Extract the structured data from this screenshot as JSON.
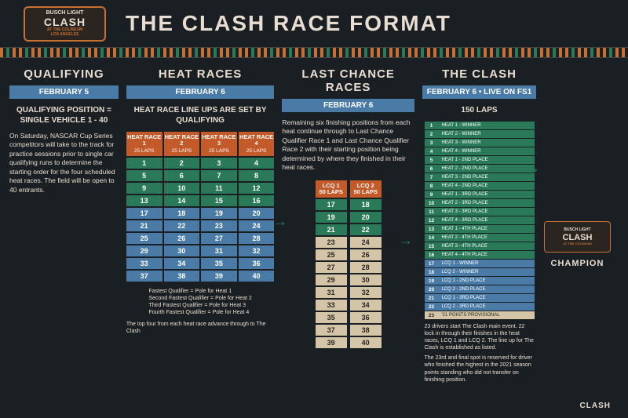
{
  "colors": {
    "bg": "#1a1f24",
    "cream": "#e8ddd0",
    "orange": "#c25a2a",
    "green": "#2a7a5a",
    "blue": "#4a7ba6",
    "tan": "#d4c5a8"
  },
  "logo": {
    "line1": "BUSCH LIGHT",
    "line2": "CLASH",
    "line3": "AT THE COLISEUM",
    "line4": "LOS ANGELES"
  },
  "title": "THE CLASH RACE FORMAT",
  "qualifying": {
    "title": "QUALIFYING",
    "date": "FEBRUARY 5",
    "subhead": "QUALIFYING POSITION = SINGLE VEHICLE 1 - 40",
    "body": "On Saturday, NASCAR Cup Series competitors will take to the track for practice sessions prior to single car qualifying runs to determine the starting order for the four scheduled heat races. The field will be open to 40 entrants."
  },
  "heats": {
    "title": "HEAT RACES",
    "date": "FEBRUARY 6",
    "subhead": "HEAT RACE LINE UPS ARE SET BY QUALIFYING",
    "headers": [
      {
        "name": "HEAT RACE 1",
        "laps": "25 LAPS"
      },
      {
        "name": "HEAT RACE 2",
        "laps": "25 LAPS"
      },
      {
        "name": "HEAT RACE 3",
        "laps": "25 LAPS"
      },
      {
        "name": "HEAT RACE 4",
        "laps": "25 LAPS"
      }
    ],
    "rows": [
      {
        "cells": [
          1,
          2,
          3,
          4
        ],
        "color": "green"
      },
      {
        "cells": [
          5,
          6,
          7,
          8
        ],
        "color": "green"
      },
      {
        "cells": [
          9,
          10,
          11,
          12
        ],
        "color": "green"
      },
      {
        "cells": [
          13,
          14,
          15,
          16
        ],
        "color": "green"
      },
      {
        "cells": [
          17,
          18,
          19,
          20
        ],
        "color": "blue"
      },
      {
        "cells": [
          21,
          22,
          23,
          24
        ],
        "color": "blue"
      },
      {
        "cells": [
          25,
          26,
          27,
          28
        ],
        "color": "blue"
      },
      {
        "cells": [
          29,
          30,
          31,
          32
        ],
        "color": "blue"
      },
      {
        "cells": [
          33,
          34,
          35,
          36
        ],
        "color": "blue"
      },
      {
        "cells": [
          37,
          38,
          39,
          40
        ],
        "color": "blue"
      }
    ],
    "note1": "Fastest Qualifier = Pole for Heat 1\nSecond Fastest Qualifier = Pole for Heat 2\nThird Fastest Qualifier = Pole for Heat 3\nFourth Fastest Qualifier = Pole for Heat 4",
    "note2": "The top four from each heat race advance through to The Clash"
  },
  "lcq": {
    "title": "LAST CHANCE RACES",
    "date": "FEBRUARY 6",
    "body": "Remaining six finishing positions from each heat continue through to Last Chance Qualifier Race 1 and Last Chance Qualifier Race 2 with their starting position being determined by where they finished in their heat races.",
    "headers": [
      {
        "name": "LCQ 1",
        "laps": "50 LAPS"
      },
      {
        "name": "LCQ 2",
        "laps": "50 LAPS"
      }
    ],
    "rows": [
      {
        "cells": [
          17,
          18
        ],
        "color": "green"
      },
      {
        "cells": [
          19,
          20
        ],
        "color": "green"
      },
      {
        "cells": [
          21,
          22
        ],
        "color": "green"
      },
      {
        "cells": [
          23,
          24
        ],
        "color": "tan"
      },
      {
        "cells": [
          25,
          26
        ],
        "color": "tan"
      },
      {
        "cells": [
          27,
          28
        ],
        "color": "tan"
      },
      {
        "cells": [
          29,
          30
        ],
        "color": "tan"
      },
      {
        "cells": [
          31,
          32
        ],
        "color": "tan"
      },
      {
        "cells": [
          33,
          34
        ],
        "color": "tan"
      },
      {
        "cells": [
          35,
          36
        ],
        "color": "tan"
      },
      {
        "cells": [
          37,
          38
        ],
        "color": "tan"
      },
      {
        "cells": [
          39,
          40
        ],
        "color": "tan"
      }
    ]
  },
  "clash": {
    "title": "THE CLASH",
    "date": "FEBRUARY 6 • LIVE ON FS1",
    "laps": "150 LAPS",
    "rows": [
      {
        "pos": 1,
        "desc": "HEAT 1 - WINNER",
        "color": "green"
      },
      {
        "pos": 2,
        "desc": "HEAT 2 - WINNER",
        "color": "green"
      },
      {
        "pos": 3,
        "desc": "HEAT 3 - WINNER",
        "color": "green"
      },
      {
        "pos": 4,
        "desc": "HEAT 4 - WINNER",
        "color": "green"
      },
      {
        "pos": 5,
        "desc": "HEAT 1 - 2ND PLACE",
        "color": "green"
      },
      {
        "pos": 6,
        "desc": "HEAT 2 - 2ND PLACE",
        "color": "green"
      },
      {
        "pos": 7,
        "desc": "HEAT 3 - 2ND PLACE",
        "color": "green"
      },
      {
        "pos": 8,
        "desc": "HEAT 4 - 2ND PLACE",
        "color": "green"
      },
      {
        "pos": 9,
        "desc": "HEAT 1 - 3RD PLACE",
        "color": "green"
      },
      {
        "pos": 10,
        "desc": "HEAT 2 - 3RD PLACE",
        "color": "green"
      },
      {
        "pos": 11,
        "desc": "HEAT 3 - 3RD PLACE",
        "color": "green"
      },
      {
        "pos": 12,
        "desc": "HEAT 4 - 3RD PLACE",
        "color": "green"
      },
      {
        "pos": 13,
        "desc": "HEAT 1 - 4TH PLACE",
        "color": "green"
      },
      {
        "pos": 14,
        "desc": "HEAT 2 - 4TH PLACE",
        "color": "green"
      },
      {
        "pos": 15,
        "desc": "HEAT 3 - 4TH PLACE",
        "color": "green"
      },
      {
        "pos": 16,
        "desc": "HEAT 4 - 4TH PLACE",
        "color": "green"
      },
      {
        "pos": 17,
        "desc": "LCQ 1 - WINNER",
        "color": "blue"
      },
      {
        "pos": 18,
        "desc": "LCQ 2 - WINNER",
        "color": "blue"
      },
      {
        "pos": 19,
        "desc": "LCQ 1 - 2ND PLACE",
        "color": "blue"
      },
      {
        "pos": 20,
        "desc": "LCQ 2 - 2ND PLACE",
        "color": "blue"
      },
      {
        "pos": 21,
        "desc": "LCQ 1 - 3RD PLACE",
        "color": "blue"
      },
      {
        "pos": 22,
        "desc": "LCQ 2 - 3RD PLACE",
        "color": "blue"
      },
      {
        "pos": 23,
        "desc": "'21 POINTS PROVISIONAL",
        "color": "tan"
      }
    ],
    "champion": "CHAMPION",
    "note1": "23 drivers start The Clash main event. 22 lock in through their finishes in the heat races, LCQ 1 and LCQ 2. The line up for The Clash is established as listed.",
    "note2": "The 23rd and final spot is reserved for driver who finished the highest in the 2021 season points standing who did not transfer on finishing position."
  },
  "footer": "CLASH"
}
